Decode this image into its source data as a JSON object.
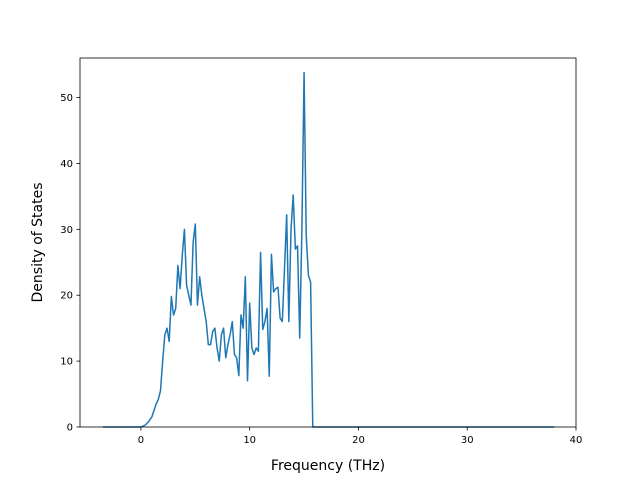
{
  "chart_data": {
    "type": "line",
    "title": "",
    "xlabel": "Frequency (THz)",
    "ylabel": "Density of States",
    "xlim": [
      -5.6,
      40.0
    ],
    "ylim": [
      0,
      56
    ],
    "xticks": [
      0,
      10,
      20,
      30,
      40
    ],
    "yticks": [
      0,
      10,
      20,
      30,
      40,
      50
    ],
    "grid": false,
    "line_color": "#1f77b4",
    "series": [
      {
        "x": [
          -3.5,
          -1.0,
          0.0,
          0.4,
          0.7,
          1.0,
          1.2,
          1.4,
          1.6,
          1.8,
          2.0,
          2.2,
          2.4,
          2.6,
          2.8,
          3.0,
          3.2,
          3.4,
          3.6,
          3.8,
          4.0,
          4.2,
          4.4,
          4.6,
          4.8,
          5.0,
          5.2,
          5.4,
          5.6,
          5.8,
          6.0,
          6.2,
          6.4,
          6.6,
          6.8,
          7.0,
          7.2,
          7.4,
          7.6,
          7.8,
          8.0,
          8.2,
          8.4,
          8.6,
          8.8,
          9.0,
          9.2,
          9.4,
          9.6,
          9.8,
          10.0,
          10.2,
          10.4,
          10.6,
          10.8,
          11.0,
          11.2,
          11.4,
          11.6,
          11.8,
          12.0,
          12.2,
          12.4,
          12.6,
          12.8,
          13.0,
          13.2,
          13.4,
          13.6,
          13.8,
          14.0,
          14.2,
          14.4,
          14.6,
          14.8,
          15.0,
          15.2,
          15.4,
          15.6,
          15.8,
          16.0,
          16.2,
          16.4,
          16.6,
          16.8,
          17.0,
          17.2,
          18.0,
          25.0,
          38.0
        ],
        "y": [
          0,
          0,
          0,
          0.3,
          0.8,
          1.5,
          2.5,
          3.5,
          4.2,
          5.5,
          10.0,
          14.0,
          15.0,
          13.0,
          19.8,
          17.0,
          18.0,
          24.5,
          21.0,
          26.0,
          30.0,
          21.5,
          20.0,
          18.5,
          28.0,
          30.8,
          18.5,
          22.8,
          20.0,
          18.0,
          16.0,
          12.5,
          12.5,
          14.5,
          15.0,
          12.0,
          10.0,
          14.0,
          15.0,
          10.5,
          12.5,
          14.0,
          16.0,
          11.0,
          10.5,
          7.8,
          17.0,
          15.0,
          22.8,
          7.0,
          18.8,
          12.0,
          11.0,
          12.0,
          11.5,
          26.5,
          14.8,
          16.0,
          18.0,
          7.7,
          26.2,
          20.5,
          21.0,
          21.2,
          16.5,
          16.0,
          24.0,
          32.2,
          16.0,
          30.0,
          35.2,
          27.0,
          27.5,
          13.5,
          30.0,
          53.8,
          29.0,
          23.0,
          22.0,
          0,
          0,
          0,
          0,
          0,
          0,
          0,
          0,
          0,
          0,
          0
        ]
      }
    ]
  }
}
